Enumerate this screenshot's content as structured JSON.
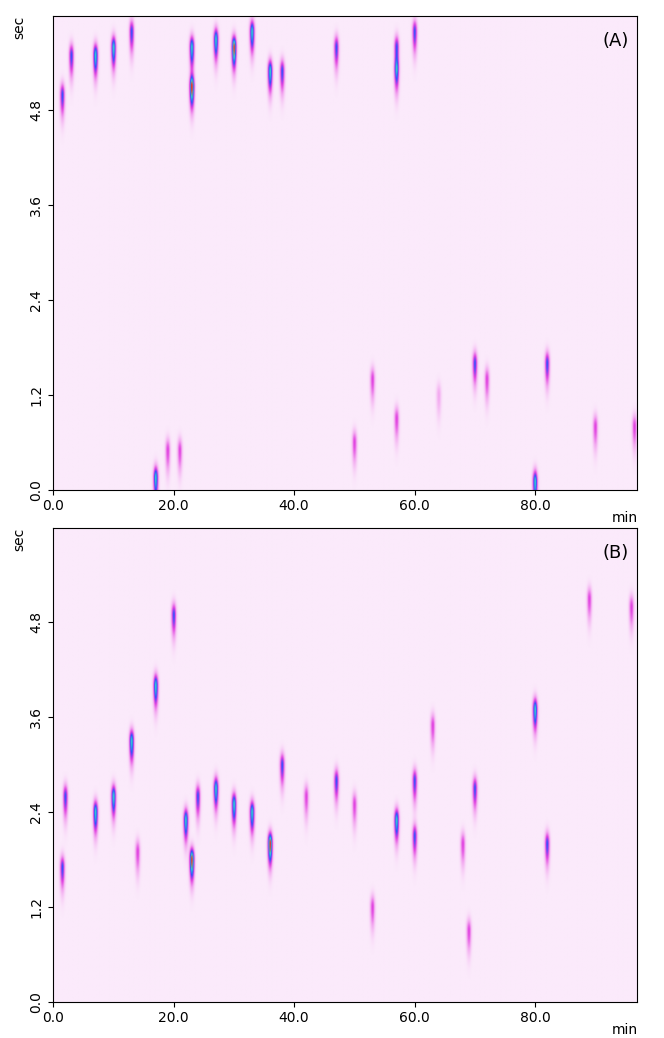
{
  "chart_data": [
    {
      "type": "contour",
      "panel_label": "(A)",
      "x_label": "min",
      "y_label": "sec",
      "xlim": [
        0,
        97
      ],
      "ylim": [
        0,
        6.0
      ],
      "xticks": [
        {
          "value": 0,
          "label": "0.0"
        },
        {
          "value": 20,
          "label": "20.0"
        },
        {
          "value": 40,
          "label": "40.0"
        },
        {
          "value": 60,
          "label": "60.0"
        },
        {
          "value": 80,
          "label": "80.0"
        }
      ],
      "yticks": [
        {
          "value": 0,
          "label": "0.0"
        },
        {
          "value": 1.2,
          "label": "1.2"
        },
        {
          "value": 2.4,
          "label": "2.4"
        },
        {
          "value": 3.6,
          "label": "3.6"
        },
        {
          "value": 4.8,
          "label": "4.8"
        }
      ],
      "peaks": {
        "x": [
          1.5,
          3,
          7,
          10,
          13,
          17,
          19,
          21,
          23,
          23,
          27,
          30,
          33,
          36,
          38,
          47,
          50,
          53,
          57,
          57,
          60,
          64,
          70,
          72,
          80,
          82,
          90,
          96.5,
          57
        ],
        "y": [
          5.0,
          5.5,
          5.5,
          5.6,
          5.8,
          0.15,
          0.5,
          0.5,
          5.1,
          5.6,
          5.7,
          5.6,
          5.8,
          5.3,
          5.3,
          5.6,
          0.6,
          1.4,
          0.9,
          5.6,
          5.8,
          1.2,
          1.6,
          1.4,
          0.1,
          1.6,
          0.8,
          0.8,
          5.3
        ],
        "intensity": [
          3,
          3,
          4,
          4,
          3,
          4,
          2,
          2,
          5,
          4,
          4,
          5,
          4,
          4,
          3,
          3,
          2,
          2,
          2,
          3,
          3,
          1,
          3,
          2,
          4,
          3,
          2,
          2,
          3
        ]
      }
    },
    {
      "type": "contour",
      "panel_label": "(B)",
      "x_label": "min",
      "y_label": "sec",
      "xlim": [
        0,
        97
      ],
      "ylim": [
        0,
        6.0
      ],
      "xticks": [
        {
          "value": 0,
          "label": "0.0"
        },
        {
          "value": 20,
          "label": "20.0"
        },
        {
          "value": 40,
          "label": "40.0"
        },
        {
          "value": 60,
          "label": "60.0"
        },
        {
          "value": 80,
          "label": "80.0"
        }
      ],
      "yticks": [
        {
          "value": 0,
          "label": "0.0"
        },
        {
          "value": 1.2,
          "label": "1.2"
        },
        {
          "value": 2.4,
          "label": "2.4"
        },
        {
          "value": 3.6,
          "label": "3.6"
        },
        {
          "value": 4.8,
          "label": "4.8"
        }
      ],
      "peaks": {
        "x": [
          1.5,
          2,
          7,
          10,
          13,
          14,
          17,
          20,
          22,
          23,
          24,
          27,
          30,
          33,
          36,
          38,
          42,
          47,
          50,
          53,
          57,
          60,
          60,
          63,
          68,
          69,
          70,
          80,
          82,
          89,
          96
        ],
        "y": [
          1.7,
          2.6,
          2.4,
          2.6,
          3.3,
          1.9,
          4.0,
          4.9,
          2.3,
          1.8,
          2.6,
          2.7,
          2.5,
          2.4,
          2.0,
          3.0,
          2.6,
          2.8,
          2.5,
          1.2,
          2.3,
          2.1,
          2.8,
          3.5,
          2.0,
          0.9,
          2.7,
          3.7,
          2.0,
          5.1,
          5.0
        ],
        "intensity": [
          3,
          3,
          4,
          4,
          4,
          2,
          4,
          3,
          4,
          5,
          3,
          4,
          4,
          4,
          5,
          3,
          2,
          3,
          2,
          2,
          4,
          3,
          3,
          2,
          2,
          2,
          3,
          4,
          3,
          2,
          2
        ]
      }
    }
  ]
}
